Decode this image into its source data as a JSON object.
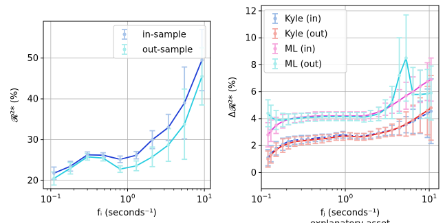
{
  "chart_data": [
    {
      "type": "line",
      "xlabel": "fᵢ (seconds⁻¹)",
      "ylabel": "𝓡²* (%)",
      "xscale": "log",
      "xlim": [
        0.08,
        12
      ],
      "ylim": [
        18,
        59
      ],
      "yticks": [
        20,
        30,
        40,
        50
      ],
      "xticks": [
        {
          "value": 0.1,
          "base": "10",
          "exp": "−1"
        },
        {
          "value": 1,
          "base": "10",
          "exp": "0"
        },
        {
          "value": 10,
          "base": "10",
          "exp": "1"
        }
      ],
      "grid": true,
      "legend_position": "top-right",
      "series": [
        {
          "name": "in-sample",
          "line_color": "#1f3fd6",
          "err_color": "#a9c5ea",
          "x": [
            0.11,
            0.18,
            0.3,
            0.48,
            0.8,
            1.3,
            2.1,
            3.4,
            5.5,
            9.3
          ],
          "y": [
            21.8,
            23.5,
            26.3,
            26.2,
            25.2,
            26.2,
            30.0,
            33.0,
            39.0,
            49.5
          ],
          "err": [
            1.5,
            1.2,
            0.7,
            0.6,
            0.8,
            0.9,
            2.2,
            3.2,
            8.8,
            7.5
          ]
        },
        {
          "name": "out-sample",
          "line_color": "#27cde0",
          "err_color": "#a8ecec",
          "x": [
            0.11,
            0.18,
            0.3,
            0.48,
            0.8,
            1.3,
            2.1,
            3.4,
            5.5,
            9.3
          ],
          "y": [
            20.5,
            23.0,
            25.8,
            25.5,
            22.8,
            23.6,
            25.8,
            28.7,
            33.8,
            45.5
          ],
          "err": [
            1.6,
            1.4,
            0.8,
            0.7,
            0.8,
            1.2,
            2.4,
            4.0,
            8.6,
            7.0
          ]
        }
      ]
    },
    {
      "type": "line",
      "xlabel": "fⱼ (seconds⁻¹)",
      "xlabel2": "explanatory asset",
      "ylabel": "Δ𝓡²* (%)",
      "xscale": "log",
      "xlim": [
        0.1,
        13
      ],
      "ylim": [
        -1.2,
        12.4
      ],
      "yticks": [
        0,
        2,
        4,
        6,
        8,
        10,
        12
      ],
      "xticks": [
        {
          "value": 0.1,
          "base": "10",
          "exp": "−1"
        },
        {
          "value": 1,
          "base": "10",
          "exp": "0"
        },
        {
          "value": 10,
          "base": "10",
          "exp": "1"
        }
      ],
      "grid": true,
      "legend_position": "top-left",
      "series": [
        {
          "name": "Kyle (in)",
          "line_color": "#1f3fd6",
          "err_color": "#9cbbe6",
          "x": [
            0.12,
            0.13,
            0.15,
            0.18,
            0.21,
            0.25,
            0.3,
            0.36,
            0.44,
            0.53,
            0.64,
            0.78,
            0.94,
            1.14,
            1.38,
            1.67,
            2.0,
            2.5,
            3.0,
            3.6,
            4.4,
            5.3,
            6.4,
            7.8,
            9.5,
            10.5
          ],
          "y": [
            1.1,
            1.4,
            1.8,
            2.1,
            2.3,
            2.4,
            2.45,
            2.5,
            2.55,
            2.6,
            2.65,
            2.75,
            2.8,
            2.75,
            2.7,
            2.7,
            2.8,
            2.95,
            3.05,
            3.15,
            3.3,
            3.55,
            3.8,
            4.1,
            4.4,
            4.55
          ],
          "err": [
            0.6,
            0.6,
            0.5,
            0.45,
            0.35,
            0.3,
            0.3,
            0.25,
            0.25,
            0.25,
            0.2,
            0.2,
            0.25,
            0.2,
            0.2,
            0.2,
            0.25,
            0.3,
            0.3,
            0.35,
            0.5,
            0.6,
            0.9,
            1.2,
            1.8,
            2.4
          ]
        },
        {
          "name": "Kyle (out)",
          "line_color": "#e8211f",
          "err_color": "#f4a8a2",
          "x": [
            0.12,
            0.13,
            0.15,
            0.18,
            0.21,
            0.25,
            0.3,
            0.36,
            0.44,
            0.53,
            0.64,
            0.78,
            0.94,
            1.14,
            1.38,
            1.67,
            2.0,
            2.5,
            3.0,
            3.6,
            4.4,
            5.3,
            6.4,
            7.8,
            9.5,
            10.5
          ],
          "y": [
            1.0,
            1.3,
            1.7,
            2.0,
            2.15,
            2.3,
            2.35,
            2.4,
            2.45,
            2.5,
            2.55,
            2.65,
            2.7,
            2.7,
            2.65,
            2.65,
            2.75,
            2.9,
            3.0,
            3.15,
            3.35,
            3.6,
            3.9,
            4.25,
            4.6,
            4.8
          ],
          "err": [
            0.6,
            0.6,
            0.5,
            0.5,
            0.4,
            0.35,
            0.3,
            0.3,
            0.3,
            0.3,
            0.25,
            0.25,
            0.3,
            0.25,
            0.25,
            0.25,
            0.3,
            0.35,
            0.35,
            0.45,
            0.6,
            0.9,
            1.1,
            1.3,
            1.8,
            2.4
          ]
        },
        {
          "name": "ML (in)",
          "line_color": "#e23ed3",
          "err_color": "#f6a8dd",
          "x": [
            0.12,
            0.13,
            0.15,
            0.18,
            0.21,
            0.25,
            0.3,
            0.36,
            0.44,
            0.53,
            0.64,
            0.78,
            0.94,
            1.14,
            1.38,
            1.67,
            2.0,
            2.5,
            3.0,
            3.6,
            4.4,
            5.3,
            6.4,
            7.8,
            9.5,
            10.5
          ],
          "y": [
            2.8,
            3.1,
            3.5,
            3.8,
            3.95,
            4.05,
            4.1,
            4.15,
            4.2,
            4.2,
            4.2,
            4.2,
            4.2,
            4.2,
            4.2,
            4.2,
            4.3,
            4.5,
            4.7,
            5.0,
            5.35,
            5.7,
            6.0,
            6.4,
            6.75,
            6.9
          ],
          "err": [
            0.9,
            0.8,
            0.6,
            0.5,
            0.4,
            0.35,
            0.3,
            0.3,
            0.3,
            0.3,
            0.3,
            0.3,
            0.3,
            0.3,
            0.3,
            0.3,
            0.3,
            0.35,
            0.45,
            0.6,
            0.8,
            1.0,
            1.1,
            1.2,
            1.4,
            1.6
          ]
        },
        {
          "name": "ML (out)",
          "line_color": "#27cde0",
          "err_color": "#a8ecec",
          "x": [
            0.12,
            0.13,
            0.15,
            0.18,
            0.21,
            0.25,
            0.3,
            0.36,
            0.44,
            0.53,
            0.64,
            0.78,
            0.94,
            1.14,
            1.38,
            1.67,
            2.0,
            2.5,
            3.0,
            3.6,
            4.4,
            5.3,
            6.4,
            7.8,
            9.5,
            10.5
          ],
          "y": [
            4.4,
            4.1,
            3.9,
            3.9,
            3.95,
            4.0,
            4.05,
            4.1,
            4.1,
            4.15,
            4.15,
            4.15,
            4.15,
            4.15,
            4.15,
            4.1,
            4.2,
            4.35,
            4.7,
            5.2,
            7.2,
            8.5,
            5.8,
            5.8,
            5.85,
            5.9
          ],
          "err": [
            1.0,
            0.9,
            0.7,
            0.5,
            0.4,
            0.35,
            0.35,
            0.3,
            0.3,
            0.3,
            0.3,
            0.3,
            0.3,
            0.3,
            0.3,
            0.35,
            0.4,
            0.5,
            0.7,
            1.2,
            2.8,
            3.2,
            2.0,
            1.8,
            1.8,
            2.0
          ]
        }
      ]
    }
  ]
}
